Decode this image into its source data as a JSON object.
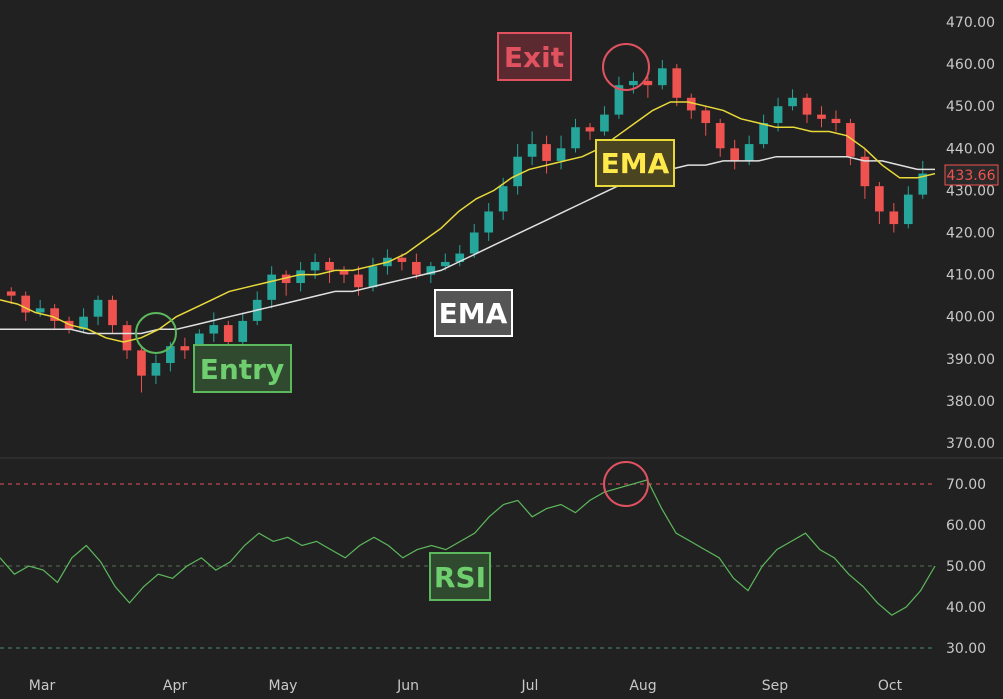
{
  "chart_data": [
    {
      "type": "candlestick",
      "x_ticks": [
        "Mar",
        "Apr",
        "May",
        "Jun",
        "Jul",
        "Aug",
        "Sep",
        "Oct"
      ],
      "y_ticks": [
        "470.00",
        "460.00",
        "450.00",
        "440.00",
        "430.00",
        "420.00",
        "410.00",
        "400.00",
        "390.00",
        "380.00",
        "370.00"
      ],
      "ylim": [
        365,
        473
      ],
      "last_price": "433.66",
      "ema_short": [
        404,
        403,
        401,
        400,
        398,
        397,
        395,
        394,
        395,
        397,
        400,
        402,
        404,
        406,
        407,
        408,
        409,
        410,
        410,
        411,
        411,
        412,
        413,
        415,
        418,
        421,
        425,
        428,
        430,
        433,
        435,
        436,
        437,
        438,
        440,
        443,
        446,
        449,
        451,
        451,
        450,
        449,
        447,
        446,
        445,
        445,
        444,
        444,
        443,
        440,
        436,
        433,
        433,
        434
      ],
      "ema_long": [
        397,
        397,
        397,
        397,
        397,
        396,
        396,
        396,
        396,
        397,
        397,
        398,
        399,
        400,
        401,
        402,
        403,
        404,
        405,
        406,
        406,
        407,
        408,
        409,
        410,
        411,
        413,
        415,
        417,
        419,
        421,
        423,
        425,
        427,
        429,
        431,
        432,
        434,
        435,
        436,
        436,
        437,
        437,
        437,
        438,
        438,
        438,
        438,
        438,
        437,
        437,
        436,
        435,
        435
      ],
      "candles": [
        [
          406,
          405,
          407,
          403
        ],
        [
          405,
          401,
          406,
          399
        ],
        [
          401,
          402,
          404,
          400
        ],
        [
          402,
          399,
          403,
          397
        ],
        [
          399,
          397,
          400,
          396
        ],
        [
          397,
          400,
          402,
          396
        ],
        [
          400,
          404,
          405,
          398
        ],
        [
          404,
          398,
          405,
          396
        ],
        [
          398,
          392,
          399,
          390
        ],
        [
          392,
          386,
          393,
          382
        ],
        [
          386,
          389,
          391,
          384
        ],
        [
          389,
          393,
          394,
          387
        ],
        [
          393,
          392,
          395,
          390
        ],
        [
          392,
          396,
          397,
          390
        ],
        [
          396,
          398,
          401,
          394
        ],
        [
          398,
          394,
          399,
          392
        ],
        [
          394,
          399,
          401,
          393
        ],
        [
          399,
          404,
          406,
          398
        ],
        [
          404,
          410,
          412,
          402
        ],
        [
          410,
          408,
          411,
          405
        ],
        [
          408,
          411,
          413,
          406
        ],
        [
          411,
          413,
          415,
          409
        ],
        [
          413,
          411,
          414,
          408
        ],
        [
          411,
          410,
          412,
          408
        ],
        [
          410,
          407,
          412,
          405
        ],
        [
          407,
          412,
          414,
          406
        ],
        [
          412,
          414,
          416,
          410
        ],
        [
          414,
          413,
          415,
          411
        ],
        [
          413,
          410,
          415,
          409
        ],
        [
          410,
          412,
          413,
          408
        ],
        [
          412,
          413,
          415,
          411
        ],
        [
          413,
          415,
          417,
          412
        ],
        [
          415,
          420,
          422,
          414
        ],
        [
          420,
          425,
          427,
          418
        ],
        [
          425,
          431,
          433,
          423
        ],
        [
          431,
          438,
          441,
          429
        ],
        [
          438,
          441,
          444,
          436
        ],
        [
          441,
          437,
          443,
          434
        ],
        [
          437,
          440,
          443,
          435
        ],
        [
          440,
          445,
          447,
          439
        ],
        [
          445,
          444,
          446,
          442
        ],
        [
          444,
          448,
          450,
          443
        ],
        [
          448,
          455,
          457,
          447
        ],
        [
          455,
          456,
          458,
          453
        ],
        [
          456,
          455,
          457,
          452
        ],
        [
          455,
          459,
          461,
          454
        ],
        [
          459,
          452,
          460,
          450
        ],
        [
          452,
          449,
          453,
          447
        ],
        [
          449,
          446,
          450,
          443
        ],
        [
          446,
          440,
          447,
          438
        ],
        [
          440,
          437,
          442,
          435
        ],
        [
          437,
          441,
          443,
          436
        ],
        [
          441,
          446,
          448,
          440
        ],
        [
          446,
          450,
          452,
          444
        ],
        [
          450,
          452,
          454,
          449
        ],
        [
          452,
          448,
          453,
          446
        ],
        [
          448,
          447,
          450,
          445
        ],
        [
          447,
          446,
          449,
          444
        ],
        [
          446,
          438,
          447,
          436
        ],
        [
          438,
          431,
          440,
          428
        ],
        [
          431,
          425,
          432,
          422
        ],
        [
          425,
          422,
          427,
          420
        ],
        [
          422,
          429,
          431,
          421
        ],
        [
          429,
          434,
          437,
          428
        ]
      ]
    },
    {
      "type": "line",
      "name": "RSI",
      "y_ticks": [
        "70.00",
        "60.00",
        "50.00",
        "40.00",
        "30.00"
      ],
      "ylim": [
        25,
        75
      ],
      "levels": [
        70,
        50,
        30
      ],
      "values": [
        52,
        48,
        50,
        49,
        46,
        52,
        55,
        51,
        45,
        41,
        45,
        48,
        47,
        50,
        52,
        49,
        51,
        55,
        58,
        56,
        57,
        55,
        56,
        54,
        52,
        55,
        57,
        55,
        52,
        54,
        55,
        54,
        56,
        58,
        62,
        65,
        66,
        62,
        64,
        65,
        63,
        66,
        68,
        69,
        70,
        71,
        64,
        58,
        56,
        54,
        52,
        47,
        44,
        50,
        54,
        56,
        58,
        54,
        52,
        48,
        45,
        41,
        38,
        40,
        44,
        50
      ]
    }
  ],
  "annotations": {
    "exit": {
      "label": "Exit",
      "color": "#e05260"
    },
    "ema_yellow": {
      "label": "EMA",
      "color": "#e8d93a"
    },
    "ema_white": {
      "label": "EMA",
      "color": "#ffffff"
    },
    "entry": {
      "label": "Entry",
      "color": "#5cb85c"
    },
    "rsi": {
      "label": "RSI",
      "color": "#5cb85c"
    }
  },
  "colors": {
    "up": "#26a69a",
    "down": "#ef5350",
    "ema_short": "#e8d93a",
    "ema_long": "#e0e0e0",
    "rsi": "#5cb85c",
    "overbought": "#e05260"
  }
}
